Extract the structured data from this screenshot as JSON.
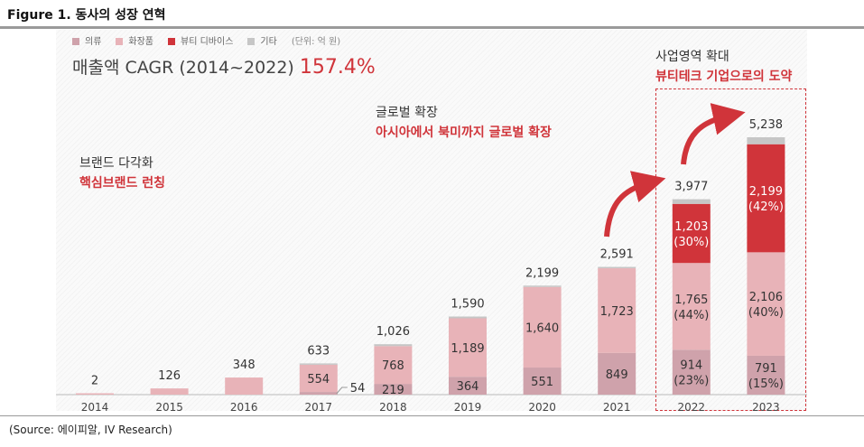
{
  "title": "Figure 1. 동사의 성장 연혁",
  "source": "(Source:  에이피알, IV Research)",
  "legend": {
    "items": [
      "의류",
      "화장품",
      "뷰티 디바이스",
      "기타"
    ],
    "unit": "(단위: 억 원)"
  },
  "cagr": {
    "label": "매출액 CAGR (2014~2022)",
    "value": "157.4%"
  },
  "annotations": [
    {
      "line1": "브랜드 다각화",
      "line2": "핵심브랜드 런칭"
    },
    {
      "line1": "글로벌 확장",
      "line2": "아시아에서 북미까지 글로벌 확장"
    },
    {
      "line1": "사업영역 확대",
      "line2": "뷰티테크 기업으로의 도약"
    }
  ],
  "chart_data": {
    "type": "bar",
    "stacked": true,
    "categories": [
      "2014",
      "2015",
      "2016",
      "2017",
      "2018",
      "2019",
      "2020",
      "2021",
      "2022",
      "2023"
    ],
    "colors": {
      "의류": "#cfa2ab",
      "화장품": "#e8b3b8",
      "뷰티 디바이스": "#d0343a",
      "기타": "#c6c6c6"
    },
    "series": [
      {
        "name": "의류",
        "values": [
          0,
          0,
          0,
          54,
          219,
          364,
          551,
          849,
          914,
          791
        ],
        "labels": [
          "",
          "",
          "",
          "54",
          "219",
          "364",
          "551",
          "849",
          "914\n(23%)",
          "791\n(15%)"
        ]
      },
      {
        "name": "화장품",
        "values": [
          2,
          126,
          348,
          554,
          768,
          1189,
          1640,
          1723,
          1765,
          2106
        ],
        "labels": [
          "",
          "",
          "",
          "554",
          "768",
          "1,189",
          "1,640",
          "1,723",
          "1,765\n(44%)",
          "2,106\n(40%)"
        ]
      },
      {
        "name": "뷰티 디바이스",
        "values": [
          0,
          0,
          0,
          0,
          0,
          0,
          0,
          0,
          1203,
          2199
        ],
        "labels": [
          "",
          "",
          "",
          "",
          "",
          "",
          "",
          "",
          "1,203\n(30%)",
          "2,199\n(42%)"
        ]
      },
      {
        "name": "기타",
        "values": [
          0,
          0,
          0,
          25,
          39,
          37,
          8,
          19,
          95,
          142
        ]
      }
    ],
    "totals": [
      "2",
      "126",
      "348",
      "633",
      "1,026",
      "1,590",
      "2,199",
      "2,591",
      "3,977",
      "5,238"
    ],
    "ylim": [
      0,
      5238
    ]
  }
}
